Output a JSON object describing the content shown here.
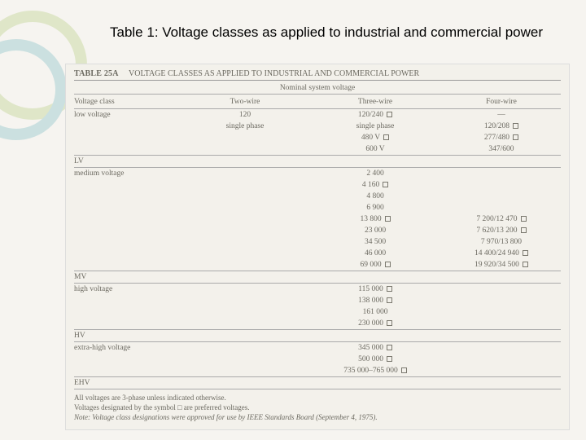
{
  "deco": {
    "stroke1": "#dfe6c8",
    "stroke2": "#cbe0e0"
  },
  "title": "Table 1: Voltage classes as applied to industrial and commercial power",
  "table": {
    "label": "TABLE 25A",
    "caption": "VOLTAGE CLASSES AS APPLIED TO INDUSTRIAL AND COMMERCIAL POWER",
    "super_header": "Nominal system voltage",
    "col_headers": [
      "Voltage class",
      "Two-wire",
      "Three-wire",
      "Four-wire"
    ],
    "sections": [
      {
        "class_label": "low voltage",
        "abbr": "LV",
        "rows": [
          {
            "c1": "",
            "c2": "120",
            "c3": "120/240",
            "c3_chk": true,
            "c4": "—"
          },
          {
            "c1": "",
            "c2": "single phase",
            "c3": "single phase",
            "c4": "120/208",
            "c4_chk": true
          },
          {
            "c1": "",
            "c2": "",
            "c3": "480 V",
            "c3_chk": true,
            "c4": "277/480",
            "c4_chk": true
          },
          {
            "c1": "",
            "c2": "",
            "c3": "600 V",
            "c4": "347/600"
          }
        ]
      },
      {
        "class_label": "medium voltage",
        "abbr": "MV",
        "rows": [
          {
            "c3": "2 400"
          },
          {
            "c3": "4 160",
            "c3_chk": true
          },
          {
            "c3": "4 800"
          },
          {
            "c3": "6 900"
          },
          {
            "c3": "13 800",
            "c3_chk": true,
            "c4": "7 200/12 470",
            "c4_chk": true
          },
          {
            "c3": "23 000",
            "c4": "7 620/13 200",
            "c4_chk": true
          },
          {
            "c3": "34 500",
            "c4": "7 970/13 800"
          },
          {
            "c3": "46 000",
            "c4": "14 400/24 940",
            "c4_chk": true
          },
          {
            "c3": "69 000",
            "c3_chk": true,
            "c4": "19 920/34 500",
            "c4_chk": true
          }
        ]
      },
      {
        "class_label": "high voltage",
        "abbr": "HV",
        "rows": [
          {
            "c3": "115 000",
            "c3_chk": true
          },
          {
            "c3": "138 000",
            "c3_chk": true
          },
          {
            "c3": "161 000"
          },
          {
            "c3": "230 000",
            "c3_chk": true
          }
        ]
      },
      {
        "class_label": "extra-high voltage",
        "abbr": "EHV",
        "rows": [
          {
            "c3": "345 000",
            "c3_chk": true
          },
          {
            "c3": "500 000",
            "c3_chk": true
          },
          {
            "c3": "735 000–765 000",
            "c3_chk": true
          }
        ]
      }
    ],
    "footnotes": [
      "All voltages are 3-phase unless indicated otherwise.",
      "Voltages designated by the symbol □ are preferred voltages.",
      "Note: Voltage class designations were approved for use by IEEE Standards Board (September 4, 1975)."
    ]
  }
}
